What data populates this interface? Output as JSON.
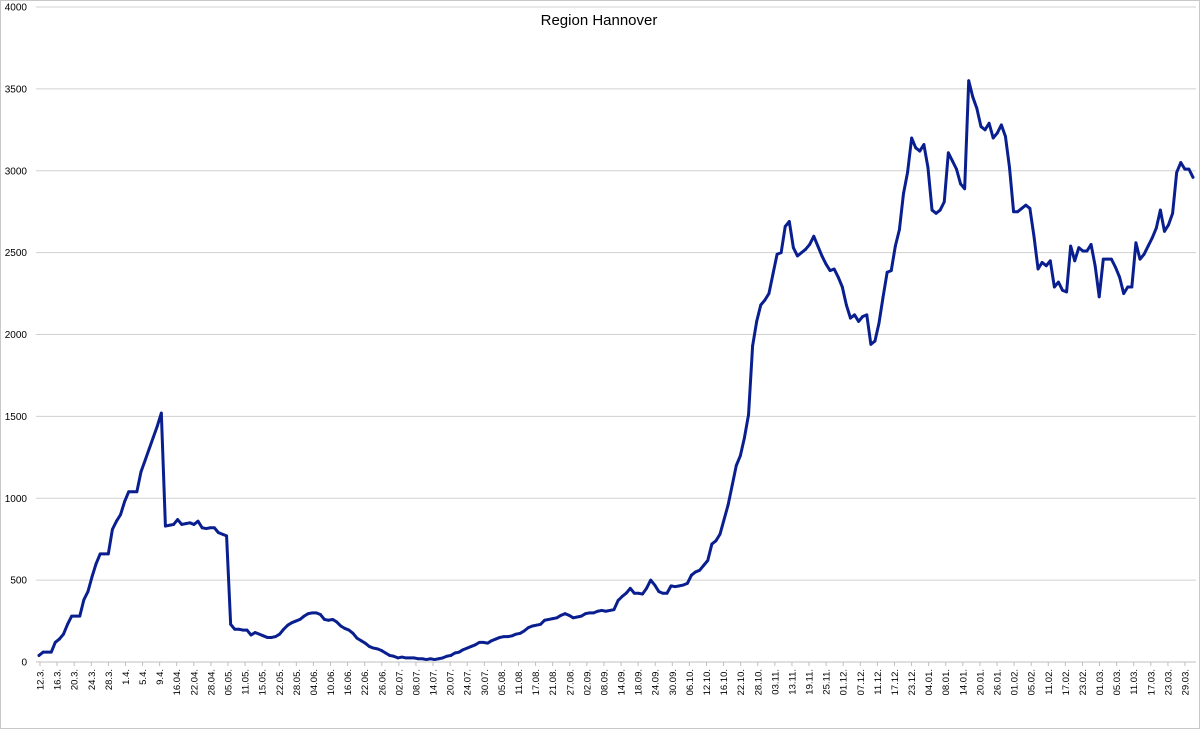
{
  "chart_data": {
    "type": "line",
    "title": "Region Hannover",
    "xlabel": "",
    "ylabel": "",
    "ylim": [
      0,
      4000
    ],
    "yticks": [
      "0",
      "500",
      "1000",
      "1500",
      "2000",
      "2500",
      "3000",
      "3500",
      "4000"
    ],
    "grid": true,
    "legend": "none",
    "line_color": "#0a1f8f",
    "xtick_labels": [
      "12.3.",
      "16.3.",
      "20.3.",
      "24.3.",
      "28.3.",
      "1.4.",
      "5.4.",
      "9.4.",
      "16.04.",
      "22.04.",
      "28.04.",
      "05.05.",
      "11.05.",
      "15.05.",
      "22.05.",
      "28.05.",
      "04.06.",
      "10.06.",
      "16.06.",
      "22.06.",
      "26.06.",
      "02.07.",
      "08.07.",
      "14.07.",
      "20.07.",
      "24.07.",
      "30.07.",
      "05.08.",
      "11.08.",
      "17.08.",
      "21.08.",
      "27.08.",
      "02.09.",
      "08.09.",
      "14.09.",
      "18.09.",
      "24.09.",
      "30.09.",
      "06.10.",
      "12.10.",
      "16.10.",
      "22.10.",
      "28.10.",
      "03.11.",
      "13.11.",
      "19.11.",
      "25.11.",
      "01.12.",
      "07.12.",
      "11.12.",
      "17.12.",
      "23.12.",
      "04.01.",
      "08.01.",
      "14.01.",
      "20.01.",
      "26.01.",
      "01.02.",
      "05.02.",
      "11.02.",
      "17.02.",
      "23.02.",
      "01.03.",
      "05.03.",
      "11.03.",
      "17.03.",
      "23.03.",
      "29.03."
    ],
    "series": [
      {
        "values": [
          40,
          60,
          60,
          60,
          120,
          140,
          170,
          230,
          280,
          280,
          280,
          380,
          430,
          520,
          600,
          660,
          660,
          660,
          810,
          860,
          900,
          980,
          1040,
          1040,
          1040,
          1160,
          1230,
          1300,
          1370,
          1440,
          1520,
          830,
          835,
          840,
          870,
          840,
          845,
          850,
          840,
          860,
          820,
          815,
          820,
          820,
          790,
          780,
          770,
          230,
          200,
          200,
          195,
          195,
          165,
          180,
          170,
          160,
          150,
          150,
          155,
          170,
          200,
          225,
          240,
          250,
          260,
          280,
          295,
          300,
          300,
          290,
          260,
          255,
          260,
          245,
          220,
          205,
          195,
          175,
          145,
          130,
          115,
          95,
          85,
          80,
          70,
          55,
          40,
          35,
          25,
          30,
          25,
          25,
          25,
          20,
          20,
          15,
          20,
          15,
          20,
          25,
          35,
          40,
          55,
          60,
          75,
          85,
          95,
          105,
          120,
          120,
          115,
          130,
          140,
          150,
          155,
          155,
          160,
          170,
          175,
          190,
          210,
          220,
          225,
          230,
          255,
          260,
          265,
          270,
          285,
          295,
          285,
          270,
          275,
          280,
          295,
          300,
          300,
          310,
          315,
          310,
          315,
          320,
          375,
          400,
          420,
          450,
          420,
          420,
          415,
          450,
          500,
          470,
          430,
          420,
          420,
          465,
          460,
          465,
          470,
          480,
          530,
          550,
          560,
          590,
          620,
          720,
          740,
          780,
          870,
          960,
          1080,
          1200,
          1260,
          1370,
          1510,
          1930,
          2080,
          2180,
          2210,
          2250,
          2370,
          2490,
          2500,
          2660,
          2690,
          2530,
          2480,
          2500,
          2520,
          2550,
          2600,
          2540,
          2480,
          2430,
          2390,
          2400,
          2350,
          2290,
          2180,
          2100,
          2120,
          2080,
          2110,
          2120,
          1940,
          1960,
          2070,
          2230,
          2380,
          2390,
          2540,
          2640,
          2860,
          2990,
          3200,
          3140,
          3120,
          3160,
          3020,
          2760,
          2740,
          2760,
          2810,
          3110,
          3060,
          3010,
          2920,
          2890,
          3550,
          3450,
          3380,
          3270,
          3250,
          3290,
          3200,
          3230,
          3280,
          3210,
          3020,
          2750,
          2750,
          2770,
          2790,
          2770,
          2600,
          2400,
          2440,
          2420,
          2450,
          2290,
          2320,
          2270,
          2260,
          2540,
          2450,
          2530,
          2510,
          2510,
          2550,
          2420,
          2230,
          2460,
          2460,
          2460,
          2410,
          2350,
          2250,
          2290,
          2290,
          2560,
          2460,
          2490,
          2540,
          2590,
          2650,
          2760,
          2630,
          2670,
          2740,
          2990,
          3050,
          3010,
          3010,
          2960
        ]
      }
    ]
  }
}
